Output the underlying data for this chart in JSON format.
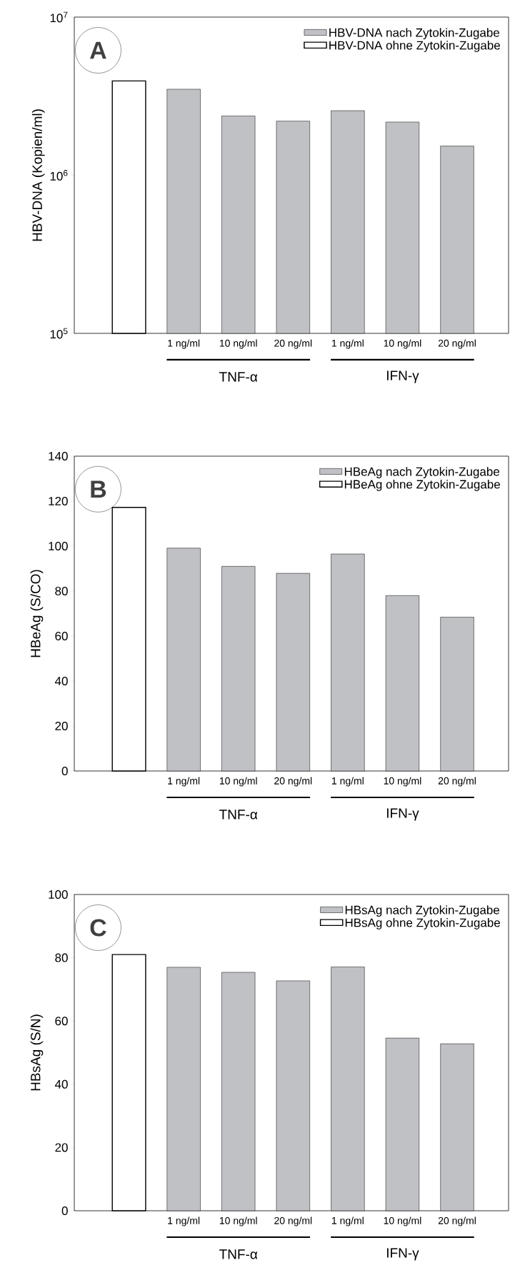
{
  "chart_data": [
    {
      "type": "bar",
      "title": "A",
      "ylabel": "HBV-DNA (Kopien/ml)",
      "categories": [
        null,
        "1 ng/ml",
        "10 ng/ml",
        "20 ng/ml",
        "1 ng/ml",
        "10 ng/ml",
        "20 ng/ml"
      ],
      "series": [
        {
          "name": "HBV-DNA nach Zytokin-Zugabe",
          "color": "#bfc1c4",
          "values": [
            null,
            3500000,
            2370000,
            2200000,
            2560000,
            2170000,
            1530000
          ]
        },
        {
          "name": "HBV-DNA ohne Zytokin-Zugabe",
          "color": "#ffffff",
          "values": [
            3950000,
            null,
            null,
            null,
            null,
            null,
            null
          ]
        }
      ],
      "log": "y",
      "ylim": [
        100000,
        10000000
      ],
      "yticks": [
        {
          "value": 100000,
          "label": "10$^{5}$"
        },
        {
          "value": 1000000,
          "label": "10$^{6}$"
        },
        {
          "value": 10000000,
          "label": "10$^{7}$"
        }
      ],
      "legend": "top right",
      "annotations": [
        "TNF-α",
        "IFN-γ"
      ]
    },
    {
      "type": "bar",
      "title": "B",
      "ylabel": "HBeAg (S/CO)",
      "categories": [
        null,
        "1 ng/ml",
        "10 ng/ml",
        "20 ng/ml",
        "1 ng/ml",
        "10 ng/ml",
        "20 ng/ml"
      ],
      "series": [
        {
          "name": "HBeAg nach Zytokin-Zugabe",
          "color": "#bfc1c4",
          "values": [
            null,
            99.1,
            91.0,
            87.9,
            96.5,
            78.0,
            68.4
          ]
        },
        {
          "name": "HBeAg ohne Zytokin-Zugabe",
          "color": "#ffffff",
          "values": [
            117.2,
            null,
            null,
            null,
            null,
            null,
            null
          ]
        }
      ],
      "ylim": [
        0,
        140
      ],
      "yticks": [
        0,
        20,
        40,
        60,
        80,
        100,
        120,
        140
      ],
      "legend": "top right",
      "annotations": [
        "TNF-α",
        "IFN-γ"
      ]
    },
    {
      "type": "bar",
      "title": "C",
      "ylabel": "HBsAg (S/N)",
      "categories": [
        null,
        "1 ng/ml",
        "10 ng/ml",
        "20 ng/ml",
        "1 ng/ml",
        "10 ng/ml",
        "20 ng/ml"
      ],
      "series": [
        {
          "name": "HBsAg nach Zytokin-Zugabe",
          "color": "#bfc1c4",
          "values": [
            null,
            77.0,
            75.4,
            72.7,
            77.1,
            54.6,
            52.8
          ]
        },
        {
          "name": "HBsAg ohne Zytokin-Zugabe",
          "color": "#ffffff",
          "values": [
            81.0,
            null,
            null,
            null,
            null,
            null,
            null
          ]
        }
      ],
      "ylim": [
        0,
        100
      ],
      "yticks": [
        0,
        20,
        40,
        60,
        80,
        100
      ],
      "legend": "top right",
      "annotations": [
        "TNF-α",
        "IFN-γ"
      ]
    }
  ]
}
